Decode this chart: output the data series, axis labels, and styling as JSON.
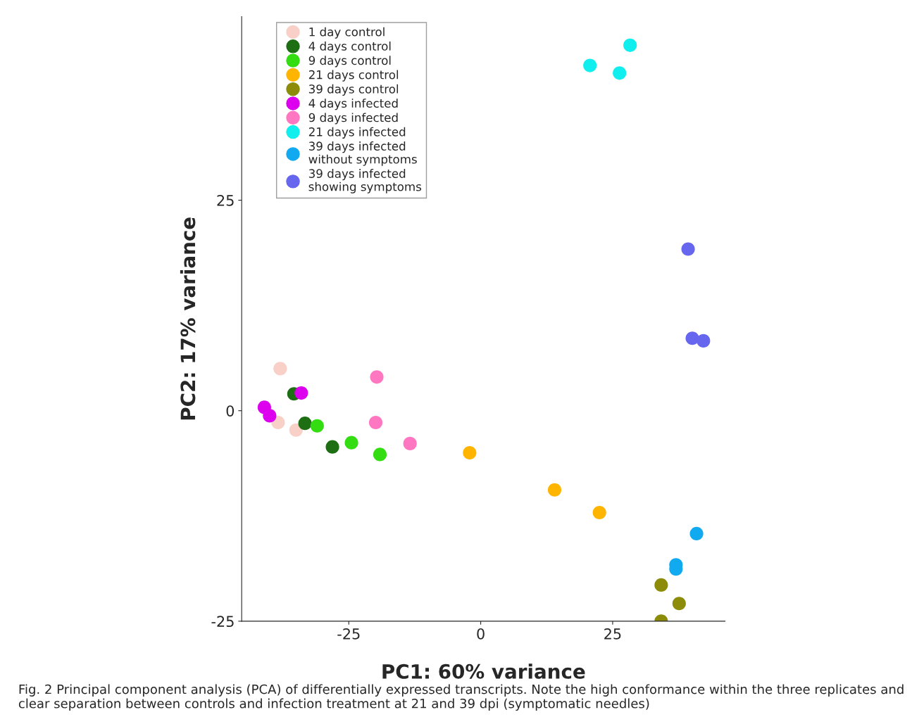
{
  "chart_data": {
    "type": "scatter",
    "xlabel": "PC1: 60% variance",
    "ylabel": "PC2: 17% variance",
    "xlim": [
      -45.3,
      46.3
    ],
    "ylim": [
      -25,
      46.8
    ],
    "xticks": [
      -25,
      0,
      25
    ],
    "yticks": [
      -25,
      0,
      25
    ],
    "grid": false,
    "legend": "top left",
    "marker": "circle",
    "series": [
      {
        "name": "1 day control",
        "color": "#f8d0c8",
        "x": [
          -38.0,
          -38.4,
          -35.0
        ],
        "values": [
          5.0,
          -1.4,
          -2.3
        ]
      },
      {
        "name": "4 days control",
        "color": "#1e6e14",
        "x": [
          -35.4,
          -33.3,
          -28.1
        ],
        "values": [
          2.0,
          -1.5,
          -4.3
        ]
      },
      {
        "name": "9 days control",
        "color": "#33dd11",
        "x": [
          -31.0,
          -24.5,
          -19.1
        ],
        "values": [
          -1.8,
          -3.8,
          -5.2
        ]
      },
      {
        "name": "21 days control",
        "color": "#ffb400",
        "x": [
          -2.1,
          14.0,
          22.5
        ],
        "values": [
          -5.0,
          -9.4,
          -12.1
        ]
      },
      {
        "name": "39 days control",
        "color": "#8c8c0a",
        "x": [
          34.2,
          37.6,
          34.2
        ],
        "values": [
          -20.7,
          -22.9,
          -25.0
        ]
      },
      {
        "name": "4 days infected",
        "color": "#dd00ee",
        "x": [
          -41.0,
          -40.0,
          -34.0
        ],
        "values": [
          0.4,
          -0.6,
          2.1
        ]
      },
      {
        "name": "9 days infected",
        "color": "#ff77c0",
        "x": [
          -19.7,
          -19.9,
          -13.4
        ],
        "values": [
          4.0,
          -1.4,
          -3.9
        ]
      },
      {
        "name": "21 days infected",
        "color": "#11eeee",
        "x": [
          20.7,
          26.3,
          28.3
        ],
        "values": [
          41.0,
          40.1,
          43.4
        ]
      },
      {
        "name": "39 days infected\nwithout symptoms",
        "color": "#11aaf0",
        "x": [
          40.9,
          37.0,
          37.0
        ],
        "values": [
          -14.6,
          -18.3,
          -18.8
        ]
      },
      {
        "name": "39 days infected\nshowing symptoms",
        "color": "#6666ee",
        "x": [
          39.3,
          40.1,
          42.2
        ],
        "values": [
          19.2,
          8.6,
          8.3
        ]
      }
    ],
    "annotations": [
      "Fig. 2 Principal component analysis (PCA) of differentially expressed transcripts. Note the high conformance within the three replicates and clear separation between controls and infection treatment at 21 and 39 dpi (symptomatic needles)"
    ]
  }
}
